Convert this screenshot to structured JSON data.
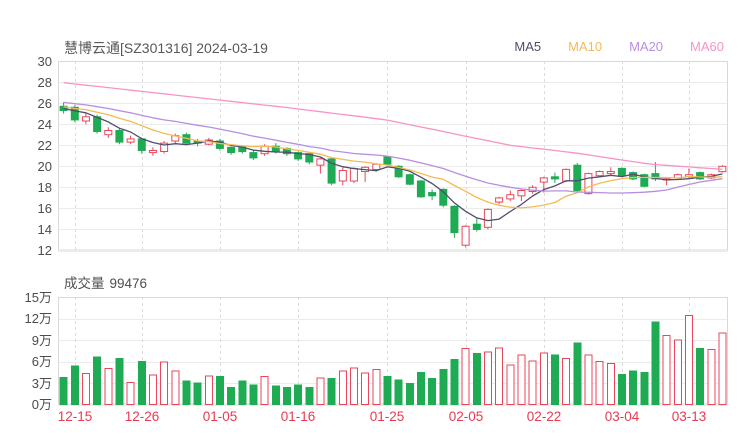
{
  "header": {
    "title": "慧博云通[SZ301316] 2024-03-19",
    "legend": [
      {
        "label": "MA5",
        "color": "#504d6e"
      },
      {
        "label": "MA10",
        "color": "#f5ba55"
      },
      {
        "label": "MA20",
        "color": "#b78fe0"
      },
      {
        "label": "MA60",
        "color": "#f794c4"
      }
    ]
  },
  "volume": {
    "label": "成交量",
    "value": "99476"
  },
  "chart_data": {
    "type": "candlestick",
    "stock_name": "慧博云通",
    "symbol": "SZ301316",
    "date": "2024-03-19",
    "title": "慧博云通[SZ301316] 2024-03-19",
    "y_axis": {
      "min": 12,
      "max": 30,
      "step": 2,
      "labels": [
        "30",
        "28",
        "26",
        "24",
        "22",
        "20",
        "18",
        "16",
        "14",
        "12"
      ]
    },
    "volume_axis": {
      "max_wan": 15,
      "step_wan": 3,
      "labels": [
        "15万",
        "12万",
        "9万",
        "6万",
        "3万",
        "0万"
      ]
    },
    "x_ticks": [
      {
        "label": "12-15",
        "index": 1
      },
      {
        "label": "12-26",
        "index": 7
      },
      {
        "label": "01-05",
        "index": 14
      },
      {
        "label": "01-16",
        "index": 21
      },
      {
        "label": "01-25",
        "index": 29
      },
      {
        "label": "02-05",
        "index": 36
      },
      {
        "label": "02-22",
        "index": 43
      },
      {
        "label": "03-04",
        "index": 50
      },
      {
        "label": "03-13",
        "index": 56
      }
    ],
    "candle_fields": "open,high,low,close,volume_wan",
    "candles": [
      [
        25.7,
        26.1,
        25.0,
        25.3,
        3.8
      ],
      [
        25.6,
        25.8,
        24.2,
        24.4,
        5.4
      ],
      [
        24.3,
        25.1,
        24.0,
        24.7,
        4.3
      ],
      [
        24.7,
        24.9,
        23.1,
        23.3,
        6.6
      ],
      [
        23.0,
        23.7,
        22.7,
        23.4,
        5.0
      ],
      [
        23.4,
        23.6,
        22.1,
        22.3,
        6.4
      ],
      [
        22.3,
        22.9,
        22.1,
        22.6,
        3.1
      ],
      [
        22.6,
        22.7,
        21.2,
        21.5,
        6.0
      ],
      [
        21.3,
        21.8,
        21.0,
        21.5,
        4.1
      ],
      [
        21.4,
        22.4,
        21.2,
        22.2,
        5.9
      ],
      [
        22.4,
        23.1,
        22.2,
        22.9,
        4.7
      ],
      [
        23.0,
        23.2,
        22.0,
        22.2,
        3.3
      ],
      [
        22.4,
        22.6,
        21.9,
        22.2,
        3.0
      ],
      [
        22.1,
        22.7,
        22.0,
        22.5,
        4.0
      ],
      [
        22.4,
        22.6,
        21.5,
        21.7,
        3.9
      ],
      [
        21.8,
        21.9,
        21.1,
        21.3,
        2.4
      ],
      [
        21.9,
        22.0,
        21.2,
        21.4,
        3.3
      ],
      [
        21.3,
        21.5,
        20.6,
        20.8,
        2.7
      ],
      [
        21.2,
        22.1,
        21.0,
        21.9,
        3.9
      ],
      [
        21.9,
        22.2,
        21.2,
        21.4,
        2.6
      ],
      [
        21.7,
        21.8,
        21.0,
        21.2,
        2.4
      ],
      [
        21.3,
        21.4,
        20.5,
        20.7,
        2.7
      ],
      [
        21.2,
        21.3,
        20.2,
        20.4,
        2.4
      ],
      [
        20.1,
        20.8,
        19.3,
        20.7,
        3.7
      ],
      [
        20.7,
        20.8,
        18.2,
        18.4,
        3.6
      ],
      [
        18.6,
        19.9,
        18.2,
        19.6,
        4.7
      ],
      [
        18.6,
        19.9,
        18.4,
        19.8,
        5.1
      ],
      [
        19.5,
        20.0,
        18.5,
        19.9,
        4.4
      ],
      [
        19.7,
        20.3,
        19.5,
        20.2,
        4.9
      ],
      [
        20.9,
        21.0,
        20.1,
        20.2,
        3.9
      ],
      [
        20.0,
        20.1,
        18.9,
        19.0,
        3.4
      ],
      [
        19.2,
        19.3,
        18.2,
        18.3,
        2.9
      ],
      [
        18.6,
        18.7,
        17.0,
        17.1,
        4.5
      ],
      [
        17.5,
        17.8,
        16.8,
        17.2,
        3.6
      ],
      [
        17.8,
        17.9,
        16.1,
        16.3,
        4.9
      ],
      [
        16.2,
        16.3,
        13.2,
        13.7,
        6.3
      ],
      [
        12.5,
        14.4,
        12.3,
        14.3,
        7.8
      ],
      [
        14.5,
        15.1,
        13.8,
        14.0,
        7.1
      ],
      [
        14.2,
        16.0,
        14.0,
        15.9,
        7.3
      ],
      [
        16.6,
        17.1,
        16.4,
        17.0,
        7.9
      ],
      [
        16.9,
        17.7,
        16.7,
        17.3,
        5.5
      ],
      [
        17.2,
        17.8,
        16.7,
        17.7,
        6.9
      ],
      [
        17.6,
        18.2,
        17.4,
        18.0,
        6.1
      ],
      [
        18.5,
        19.0,
        17.5,
        18.9,
        7.2
      ],
      [
        19.0,
        19.4,
        18.4,
        18.8,
        6.9
      ],
      [
        18.6,
        19.8,
        18.5,
        19.7,
        6.4
      ],
      [
        20.1,
        20.3,
        17.5,
        17.7,
        8.6
      ],
      [
        17.4,
        19.4,
        17.3,
        19.3,
        6.9
      ],
      [
        19.1,
        19.6,
        19.0,
        19.5,
        6.0
      ],
      [
        19.3,
        19.9,
        19.1,
        19.5,
        5.7
      ],
      [
        19.8,
        19.9,
        19.0,
        19.1,
        4.2
      ],
      [
        19.4,
        19.5,
        18.7,
        18.8,
        4.7
      ],
      [
        19.2,
        19.3,
        18.0,
        18.1,
        4.5
      ],
      [
        19.3,
        20.4,
        18.6,
        18.8,
        11.5
      ],
      [
        18.7,
        18.9,
        18.2,
        18.8,
        9.6
      ],
      [
        18.9,
        19.3,
        18.8,
        19.2,
        9.0
      ],
      [
        19.0,
        19.8,
        18.9,
        19.2,
        12.4
      ],
      [
        19.4,
        19.5,
        18.7,
        18.8,
        7.8
      ],
      [
        18.9,
        19.3,
        18.8,
        19.2,
        7.7
      ],
      [
        19.5,
        20.1,
        19.4,
        20.0,
        9.95
      ]
    ],
    "ma_periods": [
      5,
      10,
      20
    ],
    "ma_seed_closes": [
      27.2,
      27.0,
      26.9,
      26.8,
      26.7,
      26.6,
      26.5,
      26.4,
      26.2,
      26.0,
      25.9,
      25.9,
      25.8,
      25.8,
      25.7,
      25.7,
      25.6,
      25.6,
      25.5,
      25.5
    ],
    "ma60_values": [
      27.94,
      27.82,
      27.7,
      27.59,
      27.47,
      27.35,
      27.23,
      27.11,
      27.0,
      26.88,
      26.76,
      26.64,
      26.52,
      26.4,
      26.29,
      26.17,
      26.05,
      25.93,
      25.81,
      25.7,
      25.58,
      25.44,
      25.31,
      25.18,
      25.05,
      24.92,
      24.79,
      24.66,
      24.52,
      24.39,
      24.17,
      23.95,
      23.73,
      23.52,
      23.3,
      23.08,
      22.86,
      22.64,
      22.43,
      22.21,
      21.99,
      21.87,
      21.74,
      21.62,
      21.5,
      21.37,
      21.24,
      21.08,
      20.92,
      20.76,
      20.6,
      20.44,
      20.28,
      20.16,
      20.09,
      20.01,
      19.94,
      19.86,
      19.79,
      19.71
    ],
    "colors": {
      "up": "#e8475b",
      "down": "#1fab54",
      "date_label": "#e83a51",
      "grid": "#ebebeb",
      "grid_dashed": "#dcdcdc",
      "border": "#d9d9d9",
      "axis_text": "#4c4c4c"
    }
  }
}
